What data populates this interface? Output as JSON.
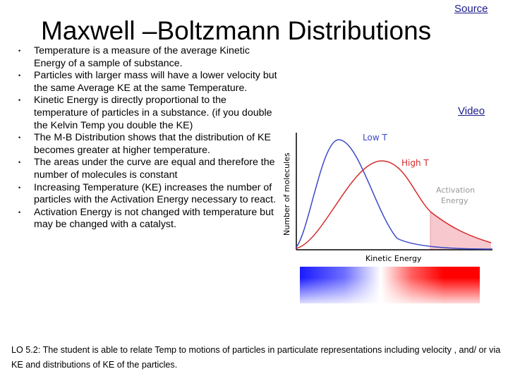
{
  "slide": {
    "title": "Maxwell –Boltzmann Distributions",
    "source_link": "Source",
    "video_link": "Video",
    "bullets": [
      "Temperature is a measure of the average Kinetic Energy of a sample of substance.",
      "Particles with larger mass will have a lower velocity but the same Average KE at the same Temperature.",
      "Kinetic Energy is directly proportional to the temperature of particles in a substance. (if you double the Kelvin Temp you double the KE)",
      "The M-B Distribution shows that the distribution of KE becomes greater at higher temperature.",
      "The areas under the curve are equal and therefore the number of molecules is constant",
      "Increasing Temperature (KE) increases the number of particles with the Activation Energy necessary to react.",
      "Activation Energy is not changed with temperature but may be changed with a catalyst."
    ],
    "learning_objective": "LO 5.2: The student is able to relate Temp to motions of particles in particulate representations including velocity , and/ or via KE and distributions of KE of the particles."
  },
  "chart_data": {
    "type": "line",
    "xlabel": "Kinetic Energy",
    "ylabel": "Number of molecules",
    "series": [
      {
        "name": "Low T",
        "color": "#3b49c8"
      },
      {
        "name": "High T",
        "color": "#d42a2a"
      }
    ],
    "annotation": "Activation Energy",
    "annotation_line1": "Activation",
    "annotation_line2": "Energy",
    "shaded_region_color": "#f7c9cf",
    "gradient_bar": {
      "left_color": "#1a1aff",
      "middle_color": "#ffffff",
      "right_color": "#ff0000"
    }
  }
}
